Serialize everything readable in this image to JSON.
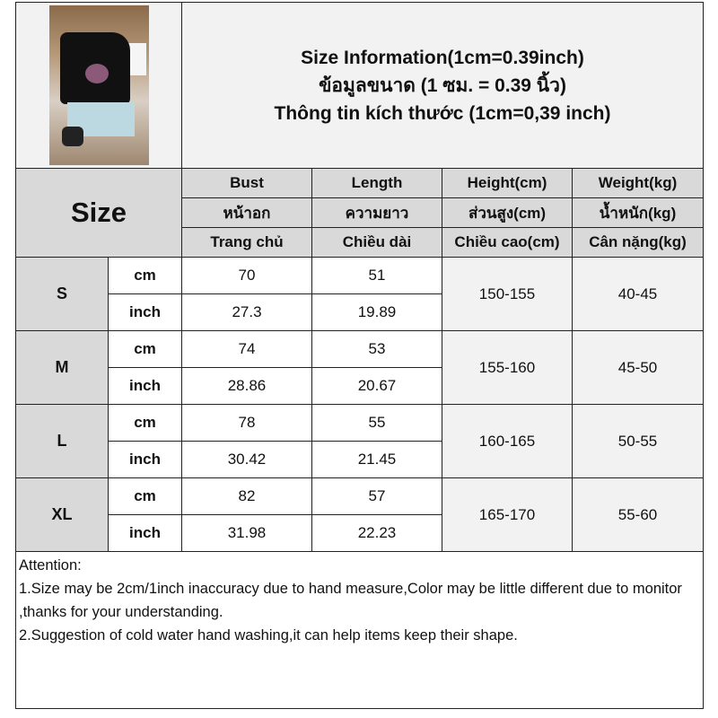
{
  "title": {
    "line1": "Size Information(1cm=0.39inch)",
    "line2": "ข้อมูลขนาด (1 ซม. = 0.39 นิ้ว)",
    "line3": "Thông tin kích thước (1cm=0,39 inch)"
  },
  "header": {
    "size_label": "Size",
    "columns": [
      {
        "en": "Bust",
        "th": "หน้าอก",
        "vi": "Trang chủ"
      },
      {
        "en": "Length",
        "th": "ความยาว",
        "vi": "Chiều dài"
      },
      {
        "en": "Height(cm)",
        "th": "ส่วนสูง(cm)",
        "vi": "Chiều cao(cm)"
      },
      {
        "en": "Weight(kg)",
        "th": "น้ำหนัก(kg)",
        "vi": "Cân nặng(kg)"
      }
    ]
  },
  "rows": [
    {
      "size": "S",
      "cm_label": "cm",
      "inch_label": "inch",
      "bust_cm": "70",
      "length_cm": "51",
      "bust_inch": "27.3",
      "length_inch": "19.89",
      "height": "150-155",
      "weight": "40-45"
    },
    {
      "size": "M",
      "cm_label": "cm",
      "inch_label": "inch",
      "bust_cm": "74",
      "length_cm": "53",
      "bust_inch": "28.86",
      "length_inch": "20.67",
      "height": "155-160",
      "weight": "45-50"
    },
    {
      "size": "L",
      "cm_label": "cm",
      "inch_label": "inch",
      "bust_cm": "78",
      "length_cm": "55",
      "bust_inch": "30.42",
      "length_inch": "21.45",
      "height": "160-165",
      "weight": "50-55"
    },
    {
      "size": "XL",
      "cm_label": "cm",
      "inch_label": "inch",
      "bust_cm": "82",
      "length_cm": "57",
      "bust_inch": "31.98",
      "length_inch": "22.23",
      "height": "165-170",
      "weight": "55-60"
    }
  ],
  "notes": {
    "heading": "Attention:",
    "item1": "1.Size may be 2cm/1inch inaccuracy due to hand measure,Color may be little different due to monitor ,thanks for your understanding.",
    "item2": "2.Suggestion of cold water hand washing,it can help items keep their shape."
  }
}
